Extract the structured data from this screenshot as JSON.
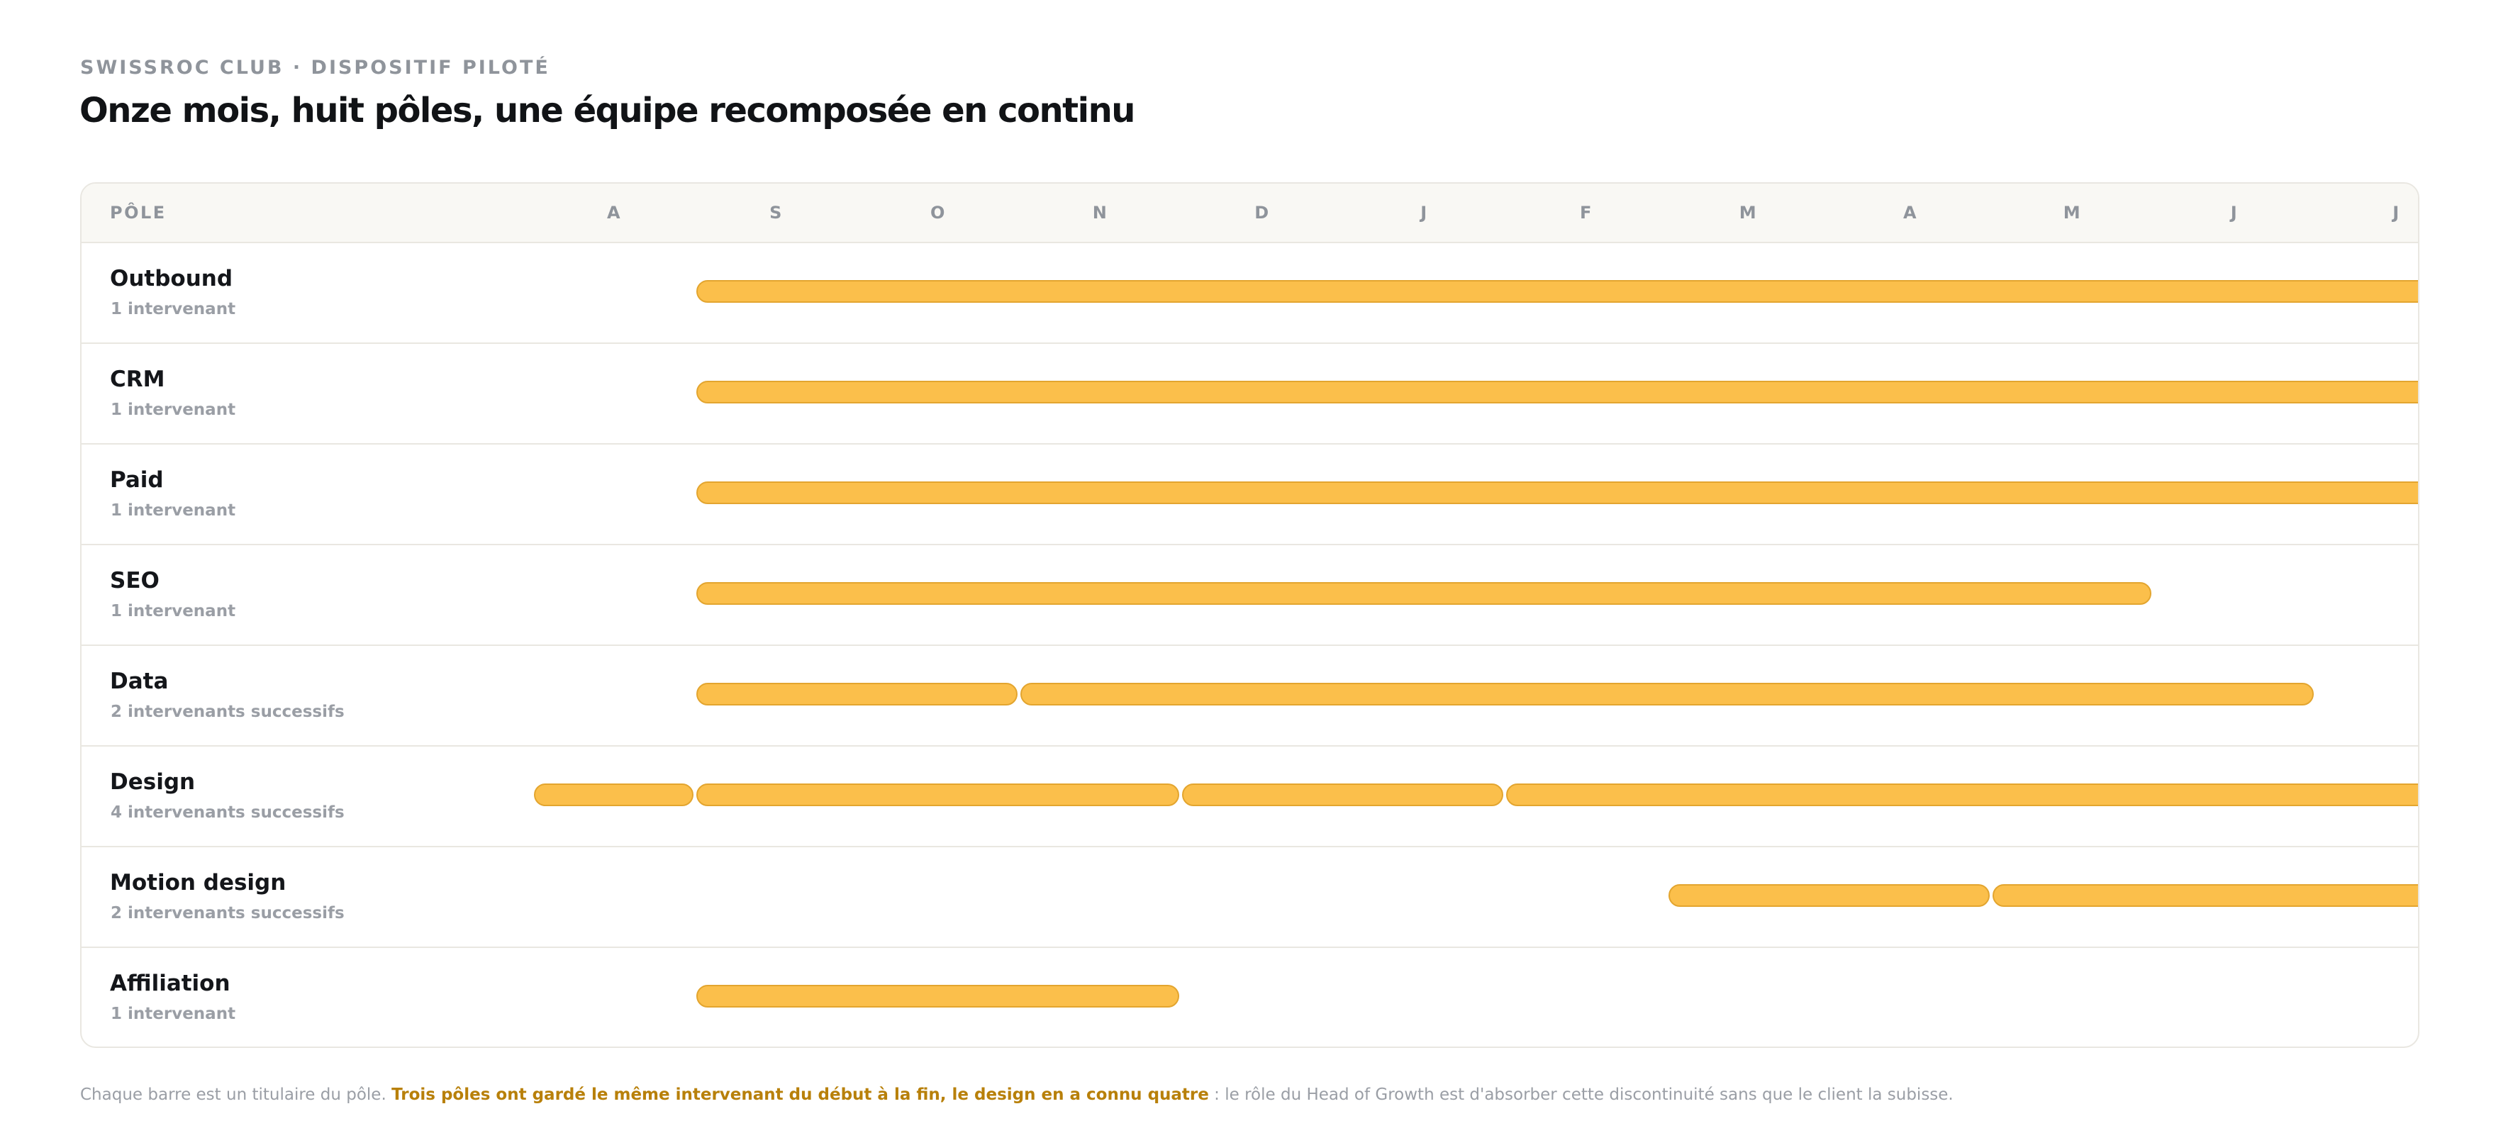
{
  "header": {
    "eyebrow": "SWISSROC CLUB · DISPOSITIF PILOTÉ",
    "title": "Onze mois, huit pôles, une équipe recomposée en continu"
  },
  "colors": {
    "bar": "#fbbf4b",
    "bar_border": "#e3a52f",
    "highlight": "#b8800a"
  },
  "chart_data": {
    "type": "bar",
    "subtype": "gantt",
    "column_header": "PÔLE",
    "months": [
      "A",
      "S",
      "O",
      "N",
      "D",
      "J",
      "F",
      "M",
      "A",
      "M",
      "J",
      "J"
    ],
    "rows": [
      {
        "name": "Outbound",
        "sub": "1 intervenant",
        "bars": [
          [
            1,
            12
          ]
        ]
      },
      {
        "name": "CRM",
        "sub": "1 intervenant",
        "bars": [
          [
            1,
            12
          ]
        ]
      },
      {
        "name": "Paid",
        "sub": "1 intervenant",
        "bars": [
          [
            1,
            12
          ]
        ]
      },
      {
        "name": "SEO",
        "sub": "1 intervenant",
        "bars": [
          [
            1,
            10
          ]
        ]
      },
      {
        "name": "Data",
        "sub": "2 intervenants successifs",
        "bars": [
          [
            1,
            3
          ],
          [
            3,
            11
          ]
        ]
      },
      {
        "name": "Design",
        "sub": "4 intervenants successifs",
        "bars": [
          [
            0,
            1
          ],
          [
            1,
            4
          ],
          [
            4,
            6
          ],
          [
            6,
            12
          ]
        ]
      },
      {
        "name": "Motion design",
        "sub": "2 intervenants successifs",
        "bars": [
          [
            7,
            9
          ],
          [
            9,
            12
          ]
        ]
      },
      {
        "name": "Affiliation",
        "sub": "1 intervenant",
        "bars": [
          [
            1,
            4
          ]
        ]
      }
    ]
  },
  "footnote": {
    "intro": "Chaque barre est un titulaire du pôle.",
    "highlight": "Trois pôles ont gardé le même intervenant du début à la fin, le design en a connu quatre",
    "outro": " : le rôle du Head of Growth est d'absorber cette discontinuité sans que le client la subisse."
  }
}
